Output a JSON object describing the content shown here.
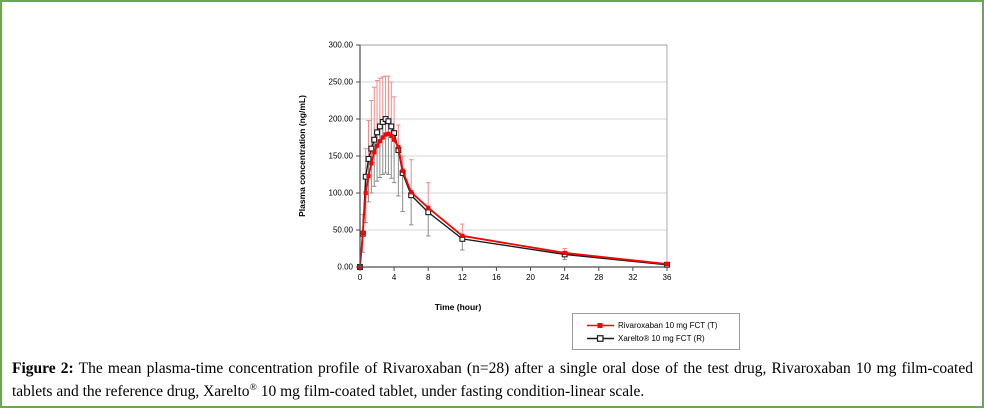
{
  "figure": {
    "caption_label": "Figure 2:",
    "caption_part1": " The mean plasma-time concentration profile of Rivaroxaban (n=28) after a single oral dose of the test drug, Rivaroxaban 10 mg film-coated tablets and the reference drug, Xarelto",
    "caption_sup": "®",
    "caption_part2": " 10 mg film-coated tablet, under fasting condition-linear scale."
  },
  "colors": {
    "frame_green": "#6aa84f",
    "test_red": "#ff0000",
    "error_up_pink": "#ef8a8a",
    "error_down_gray": "#8c8c8c",
    "reference_black": "#1a1a1a",
    "gridline": "#c9c9c9",
    "plot_frame": "#a0a0a0",
    "axis": "#4d4d4d"
  },
  "chart_data": {
    "type": "line",
    "title": "",
    "xlabel": "Time (hour)",
    "ylabel": "Plasma concentration (ng/mL)",
    "xlim": [
      0,
      36
    ],
    "ylim": [
      0,
      300
    ],
    "x_ticks": [
      0,
      4,
      8,
      12,
      16,
      20,
      24,
      28,
      32,
      36
    ],
    "y_ticks": [
      "0.00",
      "50.00",
      "100.00",
      "150.00",
      "200.00",
      "250.00",
      "300.00"
    ],
    "grid": true,
    "legend_position": "bottom-right",
    "x": [
      0,
      0.33,
      0.67,
      1,
      1.33,
      1.67,
      2,
      2.33,
      2.67,
      3,
      3.33,
      3.67,
      4,
      4.5,
      5,
      6,
      8,
      12,
      24,
      36
    ],
    "series": [
      {
        "name": "Rivaroxaban 10 mg FCT (T)",
        "marker": "filled-square",
        "color": "#ff0000",
        "values": [
          0,
          46,
          100,
          123,
          140,
          155,
          164,
          170,
          175,
          179,
          180,
          177,
          172,
          162,
          130,
          101,
          80,
          42,
          19,
          4
        ],
        "error_up": [
          0,
          25,
          60,
          75,
          85,
          88,
          88,
          85,
          82,
          79,
          78,
          73,
          58,
          30,
          20,
          44,
          34,
          16,
          6,
          0
        ]
      },
      {
        "name": "Xarelto® 10 mg FCT (R)",
        "marker": "open-square",
        "color": "#1a1a1a",
        "values": [
          0,
          45,
          122,
          146,
          160,
          172,
          182,
          190,
          196,
          200,
          197,
          190,
          181,
          158,
          127,
          97,
          74,
          38,
          17,
          3
        ],
        "error_down": [
          0,
          25,
          62,
          58,
          60,
          63,
          66,
          69,
          71,
          73,
          72,
          70,
          67,
          62,
          52,
          40,
          32,
          15,
          7,
          0
        ]
      }
    ]
  }
}
